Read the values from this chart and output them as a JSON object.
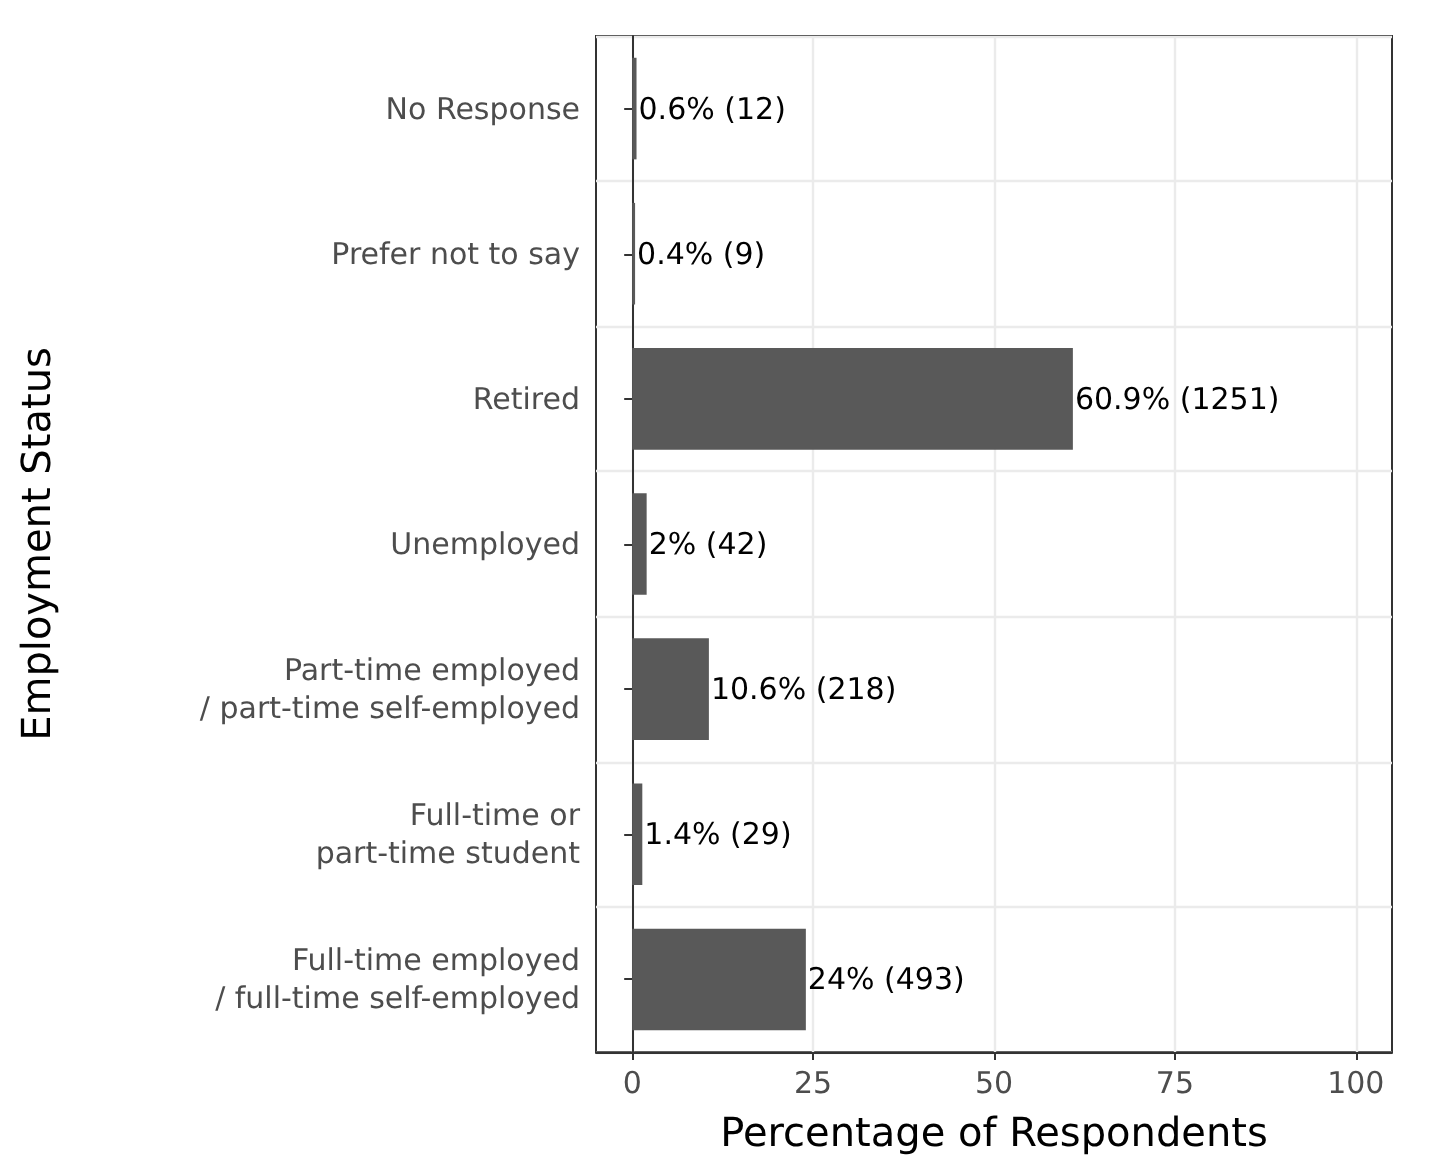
{
  "chart_data": {
    "type": "bar",
    "orientation": "horizontal",
    "xlabel": "Percentage of Respondents",
    "ylabel": "Employment Status",
    "categories": [
      "No Response",
      "Prefer not to say",
      "Retired",
      "Unemployed",
      "Part-time employed\n/ part-time self-employed",
      "Full-time or\npart-time student",
      "Full-time employed\n/ full-time self-employed"
    ],
    "values": [
      0.6,
      0.4,
      60.9,
      2,
      10.6,
      1.4,
      24
    ],
    "value_labels": [
      "0.6% (12)",
      "0.4% (9)",
      "60.9% (1251)",
      "2% (42)",
      "10.6% (218)",
      "1.4% (29)",
      "24% (493)"
    ],
    "color": "#595959",
    "xlim": [
      -5,
      105
    ],
    "xticks": [
      0,
      25,
      50,
      75,
      100
    ],
    "grid": true
  }
}
